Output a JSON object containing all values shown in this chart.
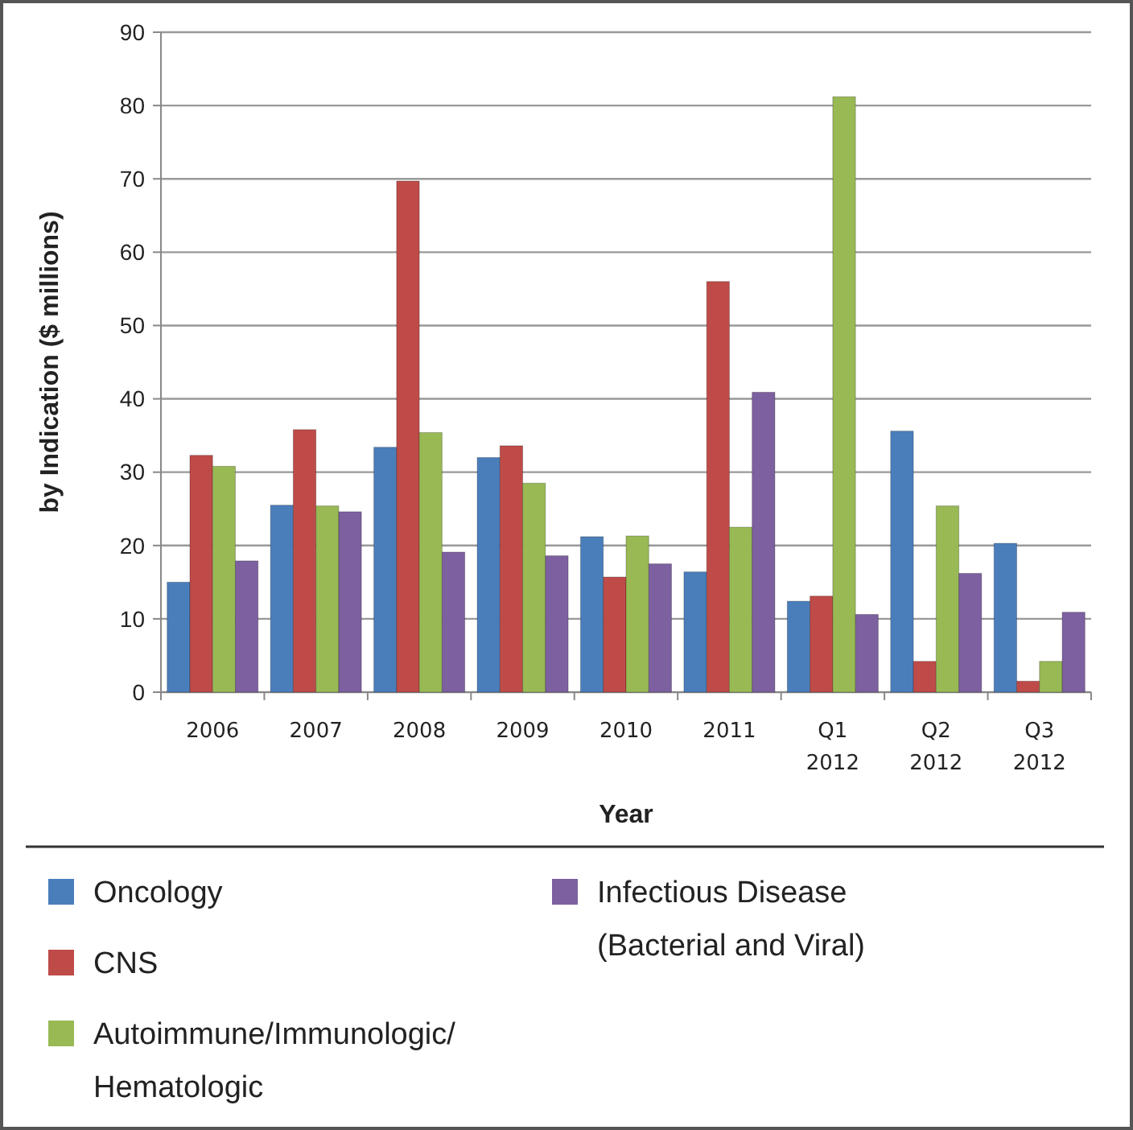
{
  "chart_data": {
    "type": "bar",
    "xlabel": "Year",
    "ylabel": "by Indication ($ millions)",
    "categories": [
      "2006",
      "2007",
      "2008",
      "2009",
      "2010",
      "2011",
      "Q1 2012",
      "Q2 2012",
      "Q3 2012"
    ],
    "series": [
      {
        "name": "Oncology",
        "color": "#4a7ebb",
        "values": [
          15,
          25.5,
          33.4,
          32,
          21.2,
          16.4,
          12.4,
          35.6,
          20.3
        ]
      },
      {
        "name": "CNS",
        "color": "#be4b48",
        "values": [
          32.3,
          35.8,
          69.7,
          33.6,
          15.7,
          56,
          13.1,
          4.2,
          1.5
        ]
      },
      {
        "name": "Autoimmune/Immunologic/Hematologic",
        "color": "#98b954",
        "values": [
          30.8,
          25.4,
          35.4,
          28.5,
          21.3,
          22.5,
          81.2,
          25.4,
          4.2
        ]
      },
      {
        "name": "Infectious Disease (Bacterial and Viral)",
        "color": "#7d60a0",
        "values": [
          17.9,
          24.6,
          19.1,
          18.6,
          17.5,
          40.9,
          10.6,
          16.2,
          10.9
        ]
      }
    ],
    "ylim": [
      0,
      90
    ],
    "yticks": [
      0,
      10,
      20,
      30,
      40,
      50,
      60,
      70,
      80,
      90
    ],
    "grid": "y",
    "legend": "bottom"
  }
}
